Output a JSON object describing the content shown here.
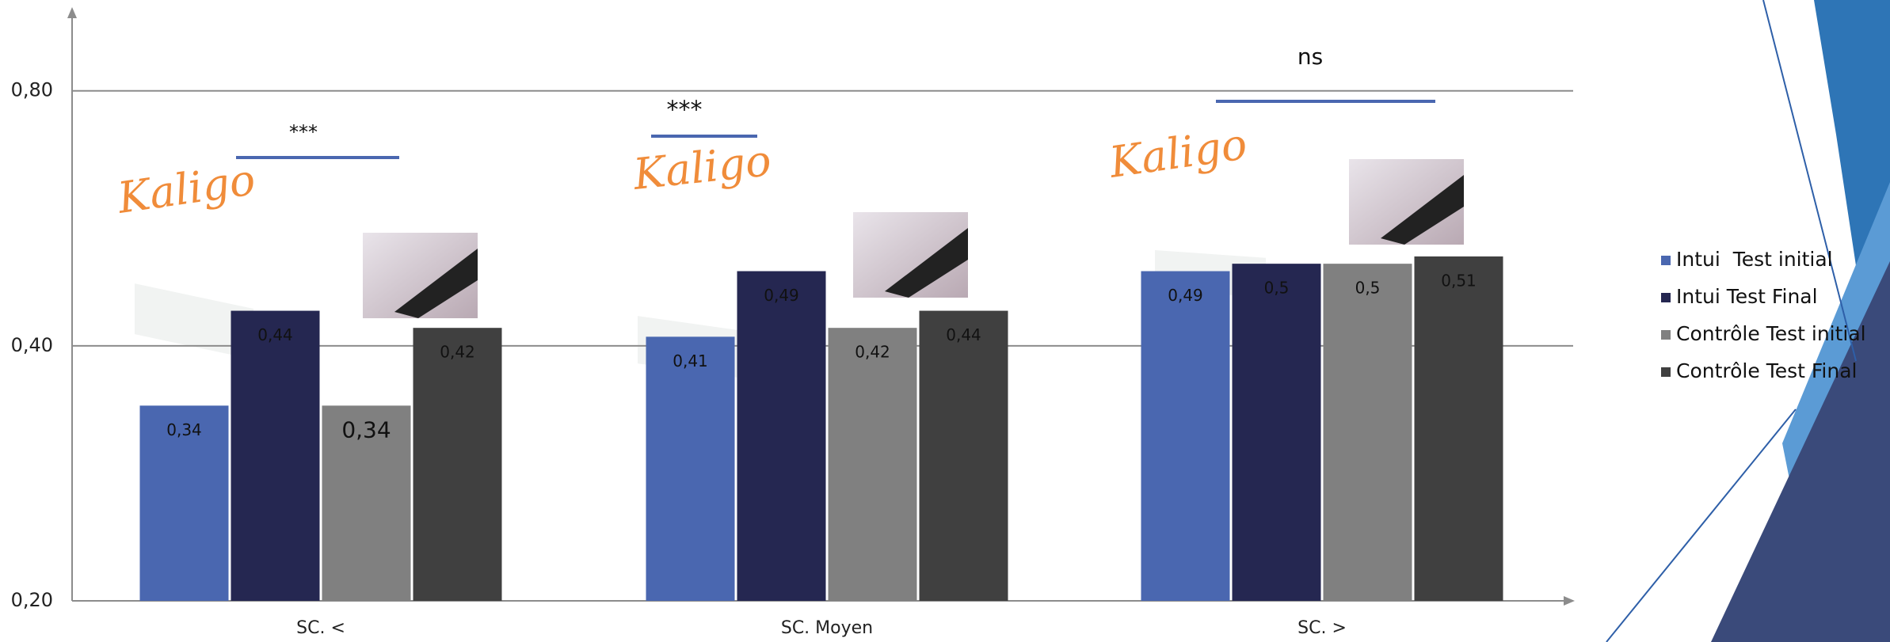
{
  "chart_data": {
    "type": "bar",
    "categories": [
      "SC. <",
      "SC. Moyen",
      "SC. >"
    ],
    "series": [
      {
        "name": "Intui  Test initial",
        "color": "#4a67b0",
        "values": [
          0.34,
          0.41,
          0.49
        ],
        "value_labels": [
          "0,34",
          "0,41",
          "0,49"
        ]
      },
      {
        "name": "Intui Test Final",
        "color": "#252751",
        "values": [
          0.44,
          0.49,
          0.5
        ],
        "value_labels": [
          "0,44",
          "0,49",
          "0,5"
        ]
      },
      {
        "name": "Contrôle Test initial",
        "color": "#808080",
        "values": [
          0.34,
          0.42,
          0.5
        ],
        "value_labels": [
          "0,34",
          "0,42",
          "0,5"
        ]
      },
      {
        "name": "Contrôle Test Final",
        "color": "#404040",
        "values": [
          0.42,
          0.44,
          0.51
        ],
        "value_labels": [
          "0,42",
          "0,44",
          "0,51"
        ]
      }
    ],
    "ylim": [
      0.2,
      1.0
    ],
    "yscale": "log",
    "yticks": [
      {
        "value": 0.2,
        "label": "0,20"
      },
      {
        "value": 0.4,
        "label": "0,40"
      },
      {
        "value": 0.8,
        "label": "0,80"
      }
    ],
    "grid": true,
    "legend": "right",
    "annotations": [
      "***",
      "***",
      "ns"
    ],
    "logo_text": "Kaligo"
  }
}
